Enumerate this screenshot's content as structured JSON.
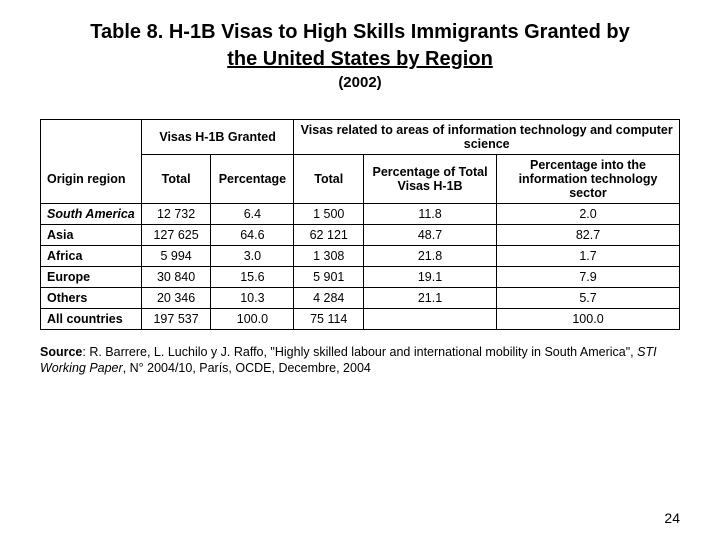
{
  "title_line1": "Table 8. H-1B Visas to High Skills Immigrants Granted by",
  "title_line2": "the United States by Region",
  "subtitle": "(2002)",
  "headers": {
    "group1": "Visas H-1B Granted",
    "group2": "Visas related to areas of information technology and computer science",
    "origin": "Origin region",
    "total1": "Total",
    "pct1": "Percentage",
    "total2": "Total",
    "pct2": "Percentage of Total Visas H-1B",
    "pct3": "Percentage into the information technology sector"
  },
  "rows": [
    {
      "region": "South America",
      "italic": true,
      "t1": "12 732",
      "p1": "6.4",
      "t2": "1 500",
      "p2": "11.8",
      "p3": "2.0"
    },
    {
      "region": "Asia",
      "italic": false,
      "t1": "127 625",
      "p1": "64.6",
      "t2": "62 121",
      "p2": "48.7",
      "p3": "82.7"
    },
    {
      "region": "Africa",
      "italic": false,
      "t1": "5 994",
      "p1": "3.0",
      "t2": "1 308",
      "p2": "21.8",
      "p3": "1.7"
    },
    {
      "region": "Europe",
      "italic": false,
      "t1": "30 840",
      "p1": "15.6",
      "t2": "5 901",
      "p2": "19.1",
      "p3": "7.9"
    },
    {
      "region": "Others",
      "italic": false,
      "t1": "20 346",
      "p1": "10.3",
      "t2": "4 284",
      "p2": "21.1",
      "p3": "5.7"
    }
  ],
  "totals": {
    "region": "All countries",
    "t1": "197 537",
    "p1": "100.0",
    "t2": "75 114",
    "p2": "",
    "p3": "100.0"
  },
  "source_label": "Source",
  "source_text_reg": ": R. Barrere, L. Luchilo y J. Raffo, \"Highly skilled labour and international mobility in South America\", ",
  "source_text_ital": "STI Working Paper",
  "source_text_tail": ", N° 2004/10, París, OCDE, Decembre, 2004",
  "page": "24"
}
